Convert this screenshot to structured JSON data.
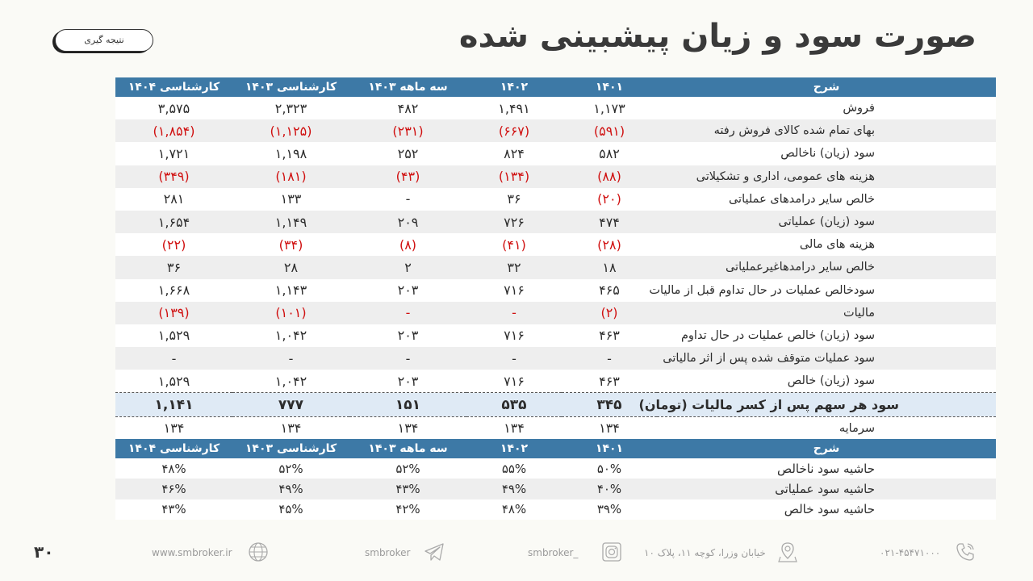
{
  "title": "صورت سود و زیان پیشبینی شده",
  "conclusion_button": "نتیجه گیری",
  "headers": [
    "شرح",
    "۱۴۰۱",
    "۱۴۰۲",
    "سه ماهه ۱۴۰۳",
    "کارشناسی ۱۴۰۳",
    "کارشناسی ۱۴۰۴"
  ],
  "rows": [
    {
      "label": "فروش",
      "values": [
        "۱,۱۷۳",
        "۱,۴۹۱",
        "۴۸۲",
        "۲,۳۲۳",
        "۳,۵۷۵"
      ]
    },
    {
      "label": "بهای تمام شده کالای فروش رفته",
      "values": [
        "(۵۹۱)",
        "(۶۶۷)",
        "(۲۳۱)",
        "(۱,۱۲۵)",
        "(۱,۸۵۴)"
      ]
    },
    {
      "label": "سود (زیان) ناخالص",
      "values": [
        "۵۸۲",
        "۸۲۴",
        "۲۵۲",
        "۱,۱۹۸",
        "۱,۷۲۱"
      ]
    },
    {
      "label": "هزینه های عمومی، اداری و تشکیلاتی",
      "values": [
        "(۸۸)",
        "(۱۳۴)",
        "(۴۳)",
        "(۱۸۱)",
        "(۳۴۹)"
      ]
    },
    {
      "label": "خالص سایر درامدهای  عملیاتی",
      "values": [
        "(۲۰)",
        "۳۶",
        "-",
        "۱۳۳",
        "۲۸۱"
      ]
    },
    {
      "label": "سود (زیان) عملیاتی",
      "values": [
        "۴۷۴",
        "۷۲۶",
        "۲۰۹",
        "۱,۱۴۹",
        "۱,۶۵۴"
      ]
    },
    {
      "label": "هزینه های مالی",
      "values": [
        "(۲۸)",
        "(۴۱)",
        "(۸)",
        "(۳۴)",
        "(۲۲)"
      ]
    },
    {
      "label": "خالص سایر درامدهاغیرعملیاتی",
      "values": [
        "۱۸",
        "۳۲",
        "۲",
        "۲۸",
        "۳۶"
      ]
    },
    {
      "label": "سودخالص عملیات در حال تداوم قبل از مالیات",
      "values": [
        "۴۶۵",
        "۷۱۶",
        "۲۰۳",
        "۱,۱۴۳",
        "۱,۶۶۸"
      ]
    },
    {
      "label": "مالیات",
      "values": [
        "(۲)",
        "-",
        "-",
        "(۱۰۱)",
        "(۱۳۹)"
      ]
    },
    {
      "label": "سود (زیان) خالص عملیات در حال تداوم",
      "values": [
        "۴۶۳",
        "۷۱۶",
        "۲۰۳",
        "۱,۰۴۲",
        "۱,۵۲۹"
      ]
    },
    {
      "label": "سود عملیات متوقف شده پس از اثر مالیاتی",
      "values": [
        "-",
        "-",
        "-",
        "-",
        "-"
      ]
    },
    {
      "label": "سود (زیان) خالص",
      "values": [
        "۴۶۳",
        "۷۱۶",
        "۲۰۳",
        "۱,۰۴۲",
        "۱,۵۲۹"
      ]
    },
    {
      "label": "سود هر سهم پس از کسر مالیات (تومان)",
      "values": [
        "۳۴۵",
        "۵۳۵",
        "۱۵۱",
        "۷۷۷",
        "۱,۱۴۱"
      ]
    },
    {
      "label": "سرمایه",
      "values": [
        "۱۳۴",
        "۱۳۴",
        "۱۳۴",
        "۱۳۴",
        "۱۳۴"
      ]
    }
  ],
  "margin_rows": [
    {
      "label": "حاشیه سود ناخالص",
      "values": [
        "۵۰%",
        "۵۵%",
        "۵۲%",
        "۵۲%",
        "۴۸%"
      ]
    },
    {
      "label": "حاشیه سود عملیاتی",
      "values": [
        "۴۰%",
        "۴۹%",
        "۴۳%",
        "۴۹%",
        "۴۶%"
      ]
    },
    {
      "label": "حاشیه سود خالص",
      "values": [
        "۳۹%",
        "۴۸%",
        "۴۲%",
        "۴۵%",
        "۴۳%"
      ]
    }
  ],
  "colors": {
    "header_bg": "#3d79a6",
    "negative": "#d01010",
    "highlight_bg": "#dfeaf5"
  },
  "footer": {
    "phone": "۰۲۱-۴۵۴۷۱۰۰۰",
    "address": "خیابان وزرا، کوچه ۱۱، پلاک ۱۰",
    "instagram": "smbroker_",
    "telegram": "smbroker",
    "website": "www.smbroker.ir"
  },
  "page_number": "۳۰"
}
